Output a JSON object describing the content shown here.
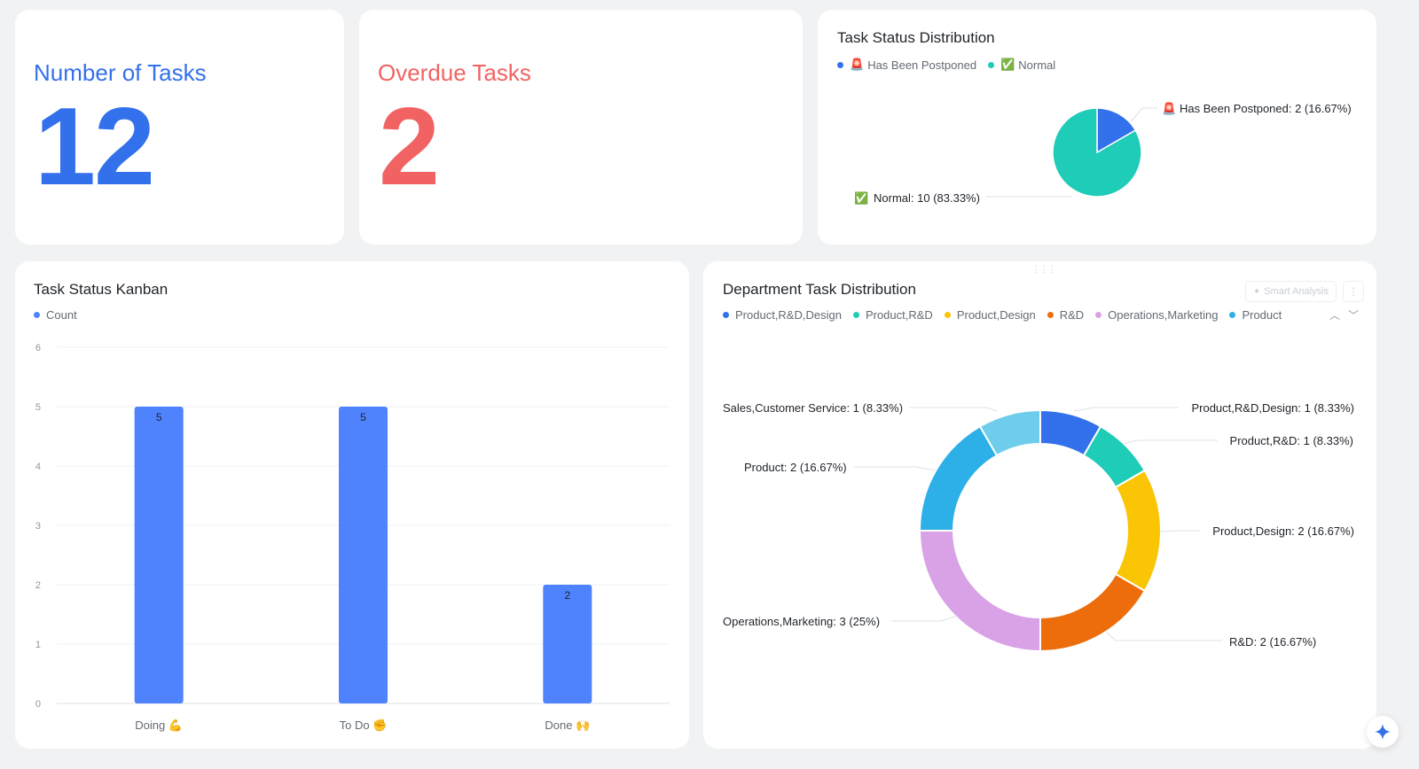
{
  "cards": {
    "tasks": {
      "label": "Number of Tasks",
      "value": "12"
    },
    "overdue": {
      "label": "Overdue Tasks",
      "value": "2"
    }
  },
  "status_distribution": {
    "title": "Task Status Distribution",
    "legend": [
      {
        "emoji": "🚨",
        "label": "Has Been Postponed",
        "color": "#3370eb"
      },
      {
        "emoji": "✅",
        "label": "Normal",
        "color": "#1fccb7"
      }
    ],
    "labels": [
      {
        "emoji": "🚨",
        "text": "Has Been Postponed: 2 (16.67%)"
      },
      {
        "emoji": "✅",
        "text": "Normal: 10 (83.33%)"
      }
    ]
  },
  "kanban": {
    "title": "Task Status Kanban",
    "legend": [
      {
        "label": "Count",
        "color": "#4e83fd"
      }
    ]
  },
  "department": {
    "title": "Department Task Distribution",
    "smart_analysis_label": "Smart Analysis",
    "more_icon": "more-vertical-icon",
    "legend": [
      {
        "label": "Product,R&D,Design",
        "color": "#3370eb"
      },
      {
        "label": "Product,R&D",
        "color": "#1fccb7"
      },
      {
        "label": "Product,Design",
        "color": "#fac505"
      },
      {
        "label": "R&D",
        "color": "#ed6d0c"
      },
      {
        "label": "Operations,Marketing",
        "color": "#d9a1e6"
      },
      {
        "label": "Product",
        "color": "#2db0e7"
      }
    ],
    "labels": [
      "Product,R&D,Design: 1 (8.33%)",
      "Product,R&D: 1 (8.33%)",
      "Product,Design: 2 (16.67%)",
      "R&D: 2 (16.67%)",
      "Operations,Marketing: 3 (25%)",
      "Product: 2 (16.67%)",
      "Sales,Customer Service: 1 (8.33%)"
    ]
  },
  "colors": {
    "accent": "#3370eb",
    "overdue": "#f16363",
    "bar": "#4e83fd"
  },
  "chart_data": [
    {
      "type": "pie",
      "title": "Task Status Distribution",
      "categories": [
        "🚨 Has Been Postponed",
        "✅ Normal"
      ],
      "values": [
        2,
        10
      ],
      "colors": [
        "#3370eb",
        "#1fccb7"
      ],
      "legend": "top-left"
    },
    {
      "type": "bar",
      "title": "Task Status Kanban",
      "categories": [
        "Doing 💪",
        "To Do ✊",
        "Done 🙌"
      ],
      "series": [
        {
          "name": "Count",
          "values": [
            5,
            5,
            2
          ]
        }
      ],
      "ylim": [
        0,
        6
      ],
      "yticks": [
        0,
        1,
        2,
        3,
        4,
        5,
        6
      ],
      "grid": true,
      "legend": "top-left"
    },
    {
      "type": "pie",
      "title": "Department Task Distribution",
      "categories": [
        "Product,R&D,Design",
        "Product,R&D",
        "Product,Design",
        "R&D",
        "Operations,Marketing",
        "Product",
        "Sales,Customer Service"
      ],
      "values": [
        1,
        1,
        2,
        2,
        3,
        2,
        1
      ],
      "colors": [
        "#3370eb",
        "#1fccb7",
        "#fac505",
        "#ed6d0c",
        "#d9a1e6",
        "#2db0e7",
        "#6dcdeb"
      ],
      "donut": true,
      "legend": "top-left"
    }
  ]
}
